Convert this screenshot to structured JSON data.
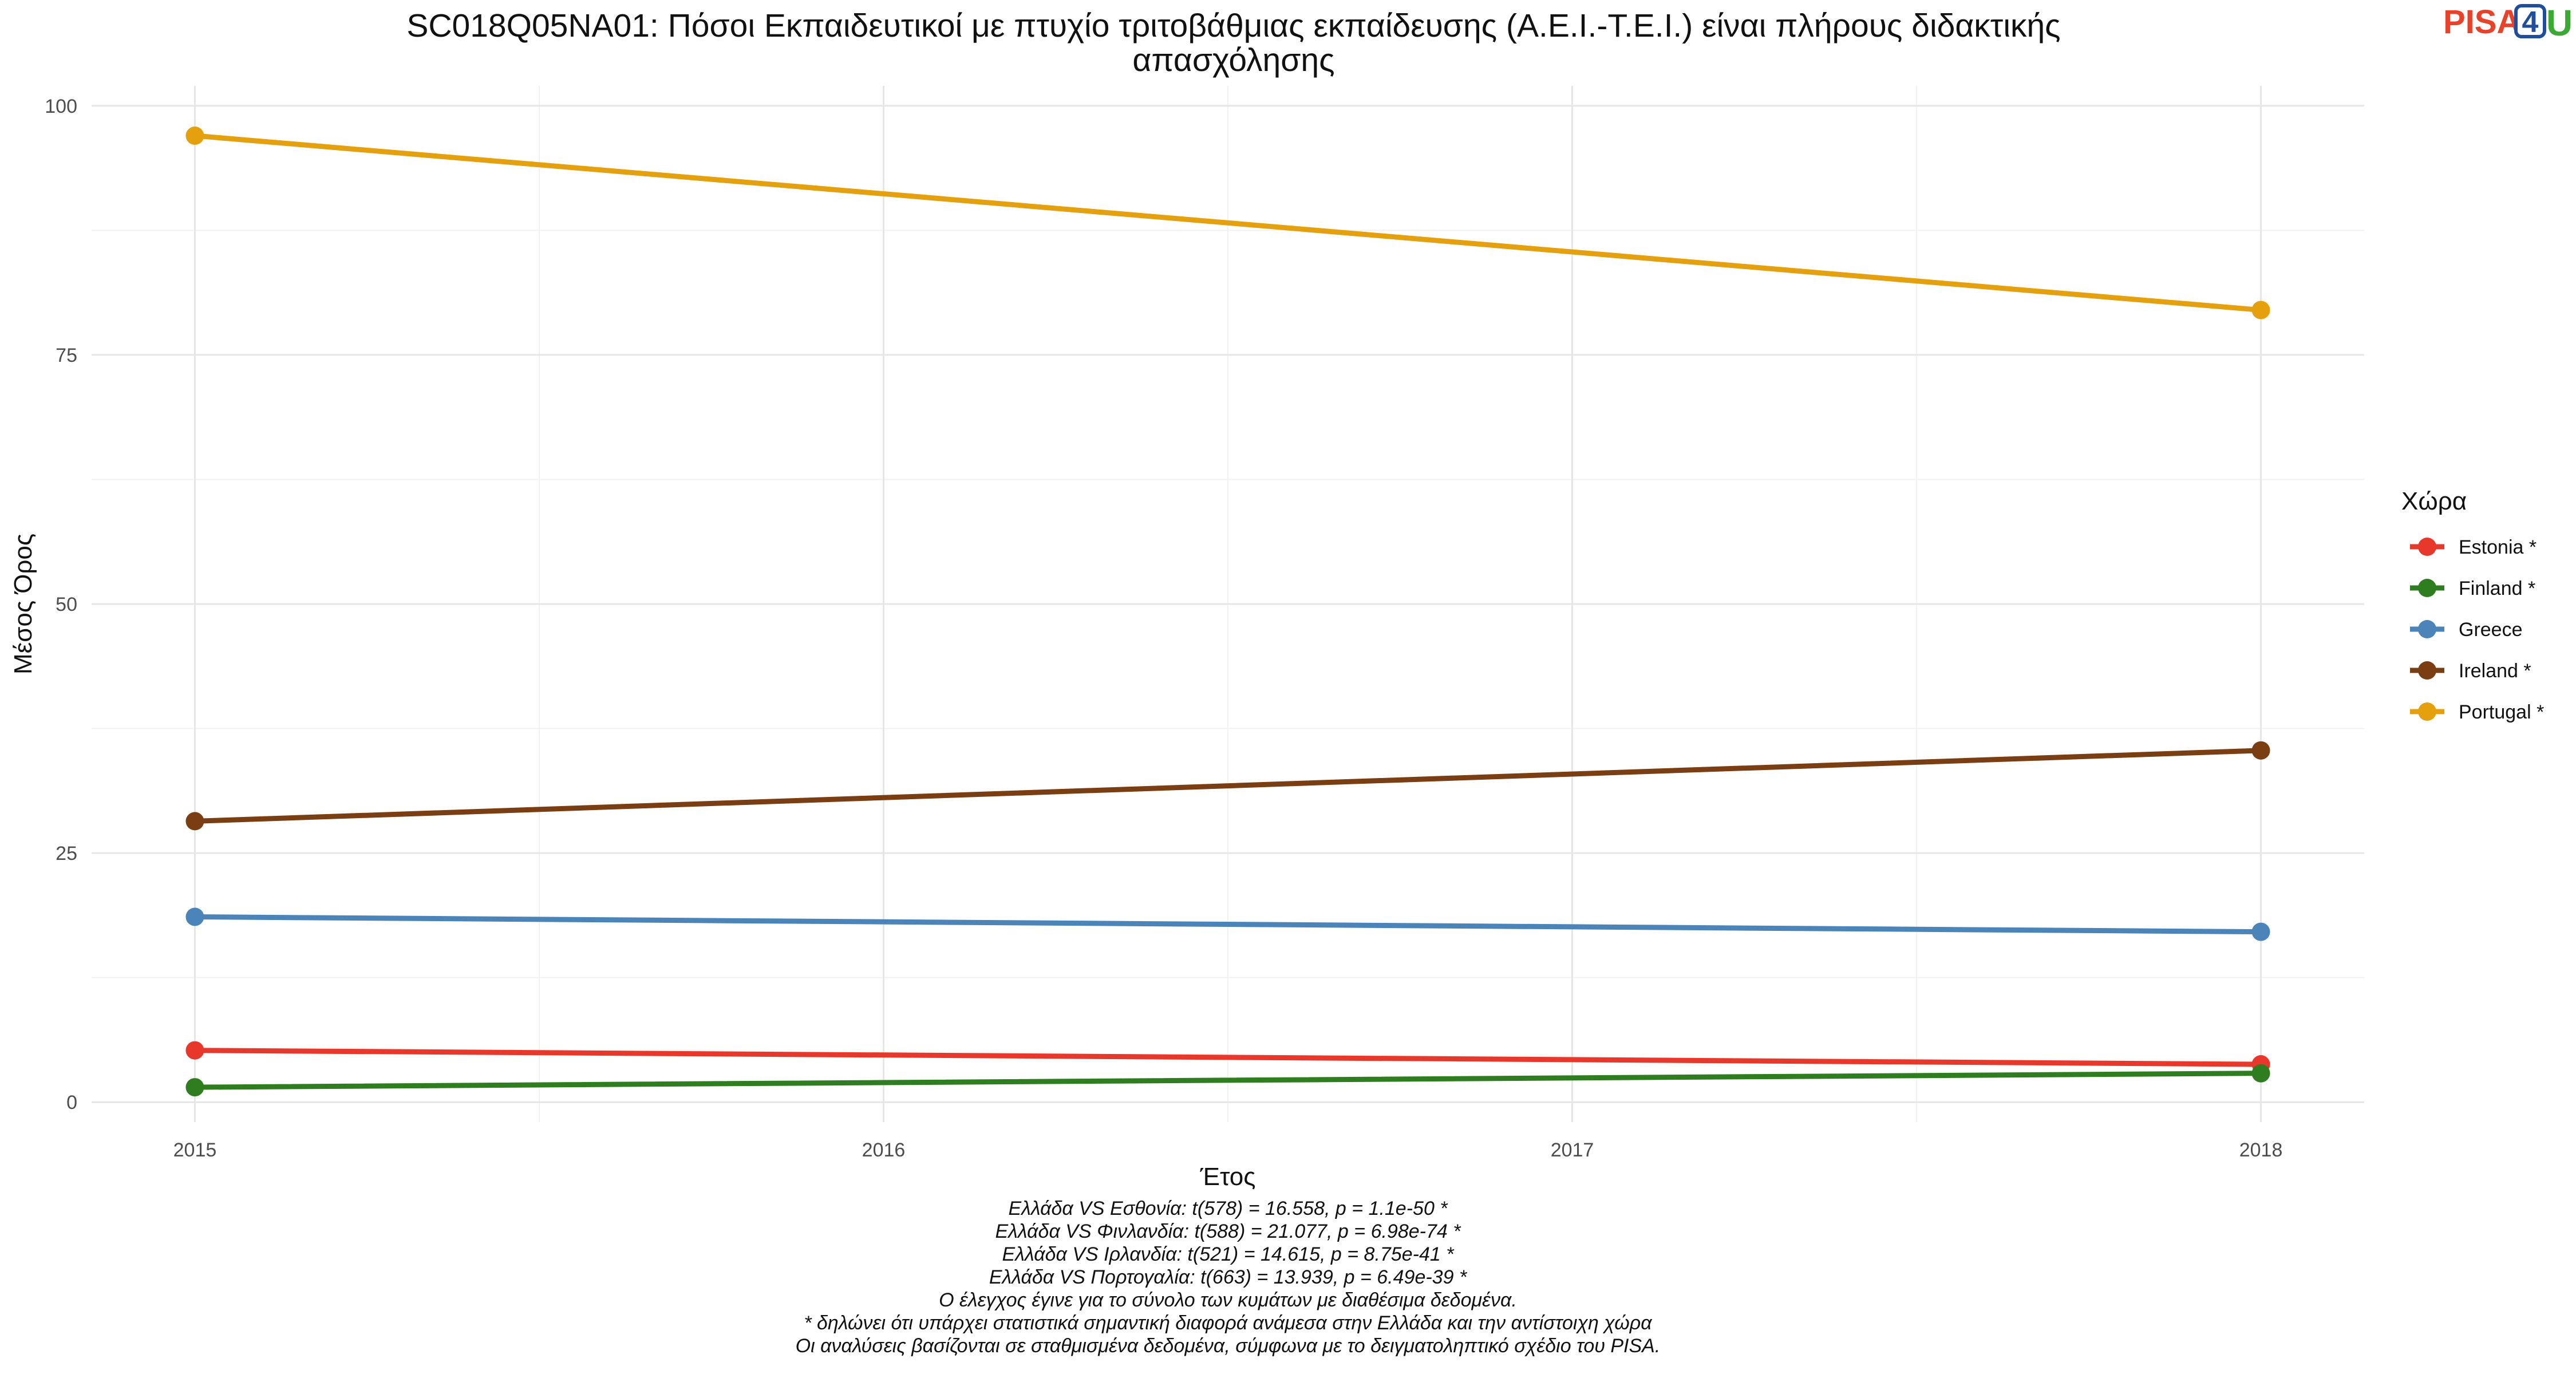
{
  "chart_data": {
    "type": "line",
    "title_lines": [
      "SC018Q05NA01: Πόσοι Εκπαιδευτικοί με πτυχίο τριτοβάθμιας εκπαίδευσης (Α.Ε.Ι.-Τ.Ε.Ι.) είναι πλήρους διδακτικής",
      "απασχόλησης"
    ],
    "xlabel": "Έτος",
    "ylabel": "Μέσος Όρος",
    "x": [
      2015,
      2016,
      2017,
      2018
    ],
    "x_ticks": [
      "2015",
      "2016",
      "2017",
      "2018"
    ],
    "y_ticks": [
      "0",
      "25",
      "50",
      "75",
      "100"
    ],
    "xlim": [
      2014.85,
      2018.15
    ],
    "ylim": [
      -2,
      102
    ],
    "grid": true,
    "legend": {
      "title": "Χώρα",
      "position": "right"
    },
    "series": [
      {
        "name": "Estonia *",
        "color": "#e8382c",
        "points": [
          [
            2015,
            5.2
          ],
          [
            2018,
            3.8
          ]
        ]
      },
      {
        "name": "Finland *",
        "color": "#2e7d1e",
        "points": [
          [
            2015,
            1.5
          ],
          [
            2018,
            2.9
          ]
        ]
      },
      {
        "name": "Greece",
        "color": "#4a84b9",
        "points": [
          [
            2015,
            18.6
          ],
          [
            2018,
            17.1
          ]
        ]
      },
      {
        "name": "Ireland *",
        "color": "#7a3e12",
        "points": [
          [
            2015,
            28.2
          ],
          [
            2018,
            35.3
          ]
        ]
      },
      {
        "name": "Portugal *",
        "color": "#e5a00d",
        "points": [
          [
            2015,
            97.0
          ],
          [
            2018,
            79.5
          ]
        ]
      }
    ],
    "caption_lines": [
      "Ελλάδα VS Εσθονία: t(578) = 16.558, p = 1.1e-50 *",
      "Ελλάδα VS Φινλανδία: t(588) = 21.077, p = 6.98e-74 *",
      "Ελλάδα VS Ιρλανδία: t(521) = 14.615, p = 8.75e-41 *",
      "Ελλάδα VS Πορτογαλία: t(663) = 13.939, p = 6.49e-39 *",
      "Ο έλεγχος έγινε για το σύνολο των κυμάτων με διαθέσιμα δεδομένα.",
      "* δηλώνει ότι υπάρχει στατιστικά σημαντική διαφορά ανάμεσα στην Ελλάδα και την αντίστοιχη χώρα",
      "Οι αναλύσεις βασίζονται σε σταθμισμένα δεδομένα, σύμφωνα με το δειγματοληπτικό σχέδιο του PISA."
    ]
  },
  "logo": {
    "text_a": "PISA",
    "text_4": "4",
    "text_u": "U"
  }
}
